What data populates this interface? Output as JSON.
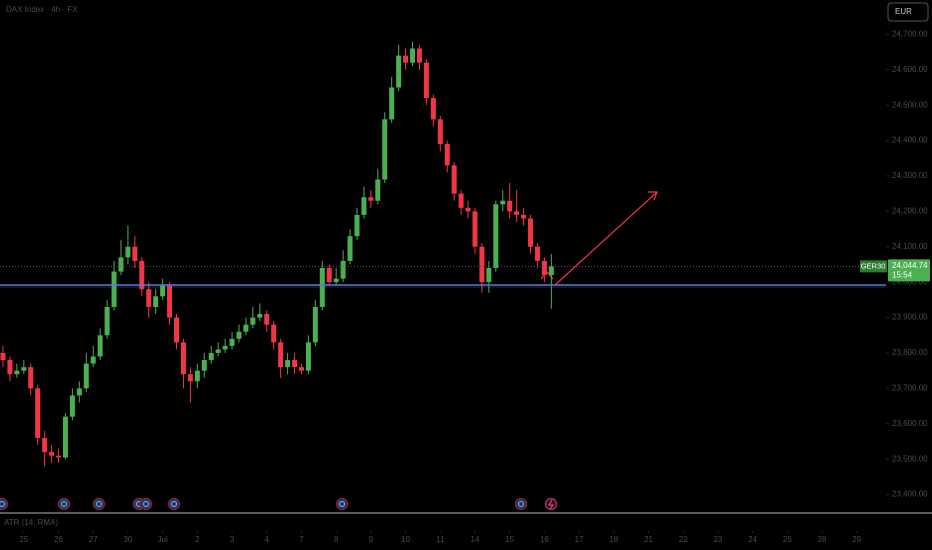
{
  "chart_data": {
    "type": "candlestick",
    "title": "DAX Index · 4h · FX",
    "currency": "EUR",
    "symbol": "GER30",
    "indicator": "ATR (14, RMA)",
    "countdown": "15:54",
    "last_label": "24,044.74",
    "up_color": "#4caf50",
    "down_color": "#f23645",
    "support_level": 23992,
    "support_color": "#5b7bd5",
    "x": [
      0,
      1,
      2,
      3,
      4,
      5,
      6,
      7,
      8,
      9,
      10,
      11,
      12,
      13,
      14,
      15,
      16,
      17,
      18,
      19,
      20,
      21,
      22,
      23,
      24,
      25,
      26,
      27,
      28,
      29,
      30,
      31,
      32,
      33,
      34,
      35,
      36,
      37,
      38,
      39,
      40,
      41,
      42,
      43,
      44,
      45,
      46,
      47,
      48,
      49,
      50,
      51,
      52,
      53,
      54,
      55,
      56,
      57,
      58,
      59,
      60,
      61,
      62,
      63,
      64,
      65,
      66,
      67,
      68,
      69,
      70,
      71,
      72,
      73,
      74,
      75,
      76,
      77,
      78,
      79
    ],
    "open": [
      23800,
      23780,
      23740,
      23750,
      23760,
      23700,
      23560,
      23520,
      23510,
      23505,
      23620,
      23680,
      23700,
      23770,
      23790,
      23850,
      23930,
      24030,
      24070,
      24100,
      24060,
      23980,
      23930,
      23960,
      23990,
      23900,
      23830,
      23740,
      23720,
      23750,
      23780,
      23800,
      23810,
      23820,
      23840,
      23860,
      23880,
      23900,
      23910,
      23880,
      23830,
      23760,
      23780,
      23760,
      23750,
      23830,
      23930,
      24040,
      24000,
      24010,
      24060,
      24130,
      24190,
      24240,
      24230,
      24290,
      24460,
      24550,
      24640,
      24620,
      24660,
      24620,
      24520,
      24460,
      24390,
      24330,
      24250,
      24210,
      24200,
      24100,
      24000,
      24040,
      24220,
      24230,
      24200,
      24190,
      24180,
      24100,
      24060,
      24020
    ],
    "high": [
      23820,
      23790,
      23770,
      23780,
      23770,
      23710,
      23580,
      23540,
      23530,
      23630,
      23700,
      23720,
      23800,
      23820,
      23870,
      23950,
      24060,
      24120,
      24160,
      24130,
      24070,
      24000,
      23980,
      24010,
      24000,
      23910,
      23840,
      23760,
      23770,
      23800,
      23820,
      23830,
      23840,
      23860,
      23880,
      23900,
      23930,
      23940,
      23920,
      23890,
      23840,
      23800,
      23800,
      23770,
      23850,
      23950,
      24060,
      24050,
      24040,
      24090,
      24150,
      24210,
      24270,
      24260,
      24320,
      24480,
      24580,
      24670,
      24660,
      24680,
      24670,
      24630,
      24530,
      24470,
      24400,
      24340,
      24260,
      24230,
      24210,
      24110,
      24060,
      24230,
      24260,
      24280,
      24260,
      24210,
      24190,
      24110,
      24070,
      24080
    ],
    "low": [
      23760,
      23720,
      23730,
      23740,
      23680,
      23540,
      23480,
      23490,
      23490,
      23500,
      23610,
      23660,
      23690,
      23760,
      23780,
      23840,
      23920,
      24020,
      24050,
      24040,
      23960,
      23900,
      23910,
      23950,
      23880,
      23810,
      23700,
      23660,
      23700,
      23730,
      23770,
      23790,
      23800,
      23810,
      23830,
      23850,
      23870,
      23890,
      23860,
      23810,
      23730,
      23740,
      23740,
      23740,
      23740,
      23820,
      23920,
      23990,
      23990,
      24000,
      24050,
      24120,
      24180,
      24210,
      24220,
      24280,
      24450,
      24540,
      24600,
      24610,
      24600,
      24500,
      24440,
      24370,
      24310,
      24230,
      24190,
      24180,
      24080,
      23970,
      23970,
      24030,
      24200,
      24180,
      24170,
      24160,
      24080,
      24040,
      24000,
      23925
    ],
    "close": [
      23780,
      23740,
      23750,
      23760,
      23700,
      23560,
      23520,
      23510,
      23505,
      23620,
      23680,
      23700,
      23770,
      23790,
      23850,
      23930,
      24030,
      24070,
      24100,
      24060,
      23980,
      23930,
      23960,
      23990,
      23900,
      23830,
      23740,
      23720,
      23750,
      23780,
      23800,
      23810,
      23820,
      23840,
      23860,
      23880,
      23900,
      23910,
      23880,
      23830,
      23760,
      23780,
      23760,
      23750,
      23830,
      23930,
      24040,
      24000,
      24010,
      24060,
      24130,
      24190,
      24240,
      24230,
      24290,
      24460,
      24550,
      24640,
      24620,
      24660,
      24620,
      24520,
      24460,
      24390,
      24330,
      24250,
      24210,
      24200,
      24100,
      24000,
      24040,
      24220,
      24230,
      24200,
      24190,
      24180,
      24100,
      24060,
      24020,
      24044.74
    ],
    "xlim": [
      -0.43,
      127.5
    ],
    "xticks": [
      {
        "value": 3,
        "label": "25"
      },
      {
        "value": 8,
        "label": "26"
      },
      {
        "value": 13,
        "label": "27"
      },
      {
        "value": 18,
        "label": "30"
      },
      {
        "value": 23,
        "label": "Jul"
      },
      {
        "value": 28,
        "label": "2"
      },
      {
        "value": 33,
        "label": "3"
      },
      {
        "value": 38,
        "label": "4"
      },
      {
        "value": 43,
        "label": "7"
      },
      {
        "value": 48,
        "label": "8"
      },
      {
        "value": 53,
        "label": "9"
      },
      {
        "value": 58,
        "label": "10"
      },
      {
        "value": 63,
        "label": "11"
      },
      {
        "value": 68,
        "label": "14"
      },
      {
        "value": 73,
        "label": "15"
      },
      {
        "value": 78,
        "label": "16"
      },
      {
        "value": 83,
        "label": "17"
      },
      {
        "value": 88,
        "label": "18"
      },
      {
        "value": 93,
        "label": "21"
      },
      {
        "value": 98,
        "label": "22"
      },
      {
        "value": 103,
        "label": "23"
      },
      {
        "value": 108,
        "label": "24"
      },
      {
        "value": 113,
        "label": "25"
      },
      {
        "value": 118,
        "label": "28"
      },
      {
        "value": 123,
        "label": "29"
      }
    ],
    "ylim": [
      23348,
      24797
    ],
    "yticks": [
      {
        "value": 23400,
        "label": "23,400.00"
      },
      {
        "value": 23500,
        "label": "23,500.00"
      },
      {
        "value": 23600,
        "label": "23,600.00"
      },
      {
        "value": 23700,
        "label": "23,700.00"
      },
      {
        "value": 23800,
        "label": "23,800.00"
      },
      {
        "value": 23900,
        "label": "23,900.00"
      },
      {
        "value": 24000,
        "label": "24,000.00"
      },
      {
        "value": 24100,
        "label": "24,100.00"
      },
      {
        "value": 24200,
        "label": "24,200.00"
      },
      {
        "value": 24300,
        "label": "24,300.00"
      },
      {
        "value": 24400,
        "label": "24,400.00"
      },
      {
        "value": 24500,
        "label": "24,500.00"
      },
      {
        "value": 24600,
        "label": "24,600.00"
      },
      {
        "value": 24700,
        "label": "24,700.00"
      }
    ]
  }
}
